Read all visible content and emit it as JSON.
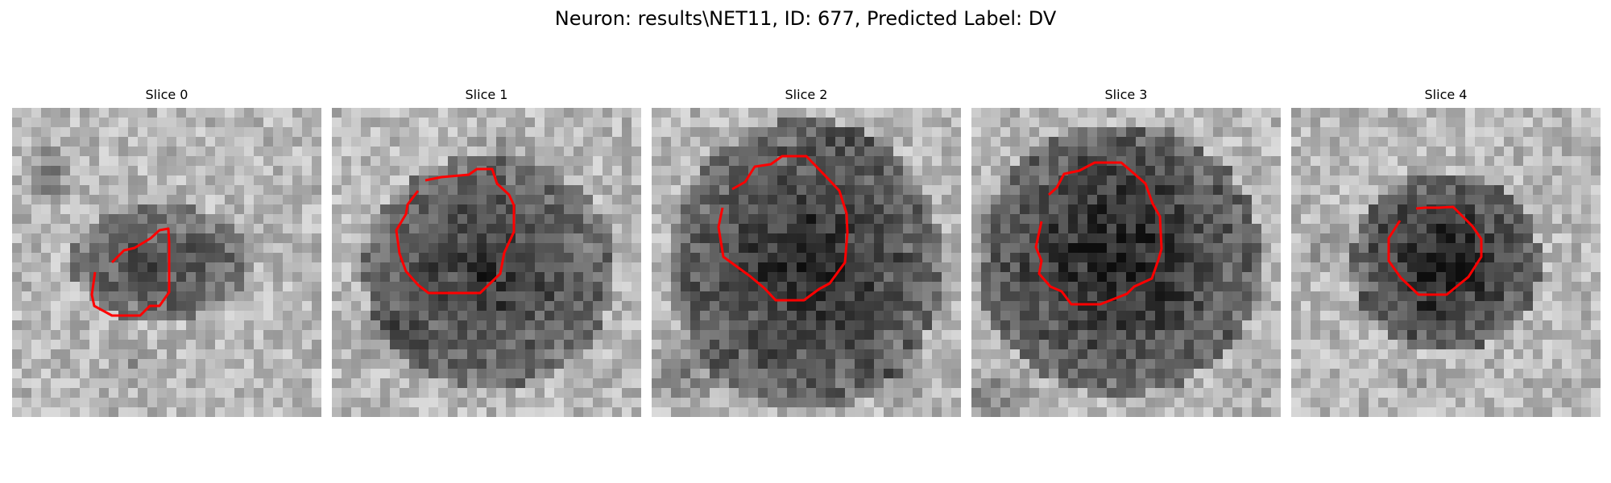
{
  "figure": {
    "title": "Neuron: results\\NET11, ID: 677, Predicted Label: DV",
    "contour_color": "#ff0000"
  },
  "slices": [
    {
      "label": "Slice 0"
    },
    {
      "label": "Slice 1"
    },
    {
      "label": "Slice 2"
    },
    {
      "label": "Slice 3"
    },
    {
      "label": "Slice 4"
    }
  ]
}
